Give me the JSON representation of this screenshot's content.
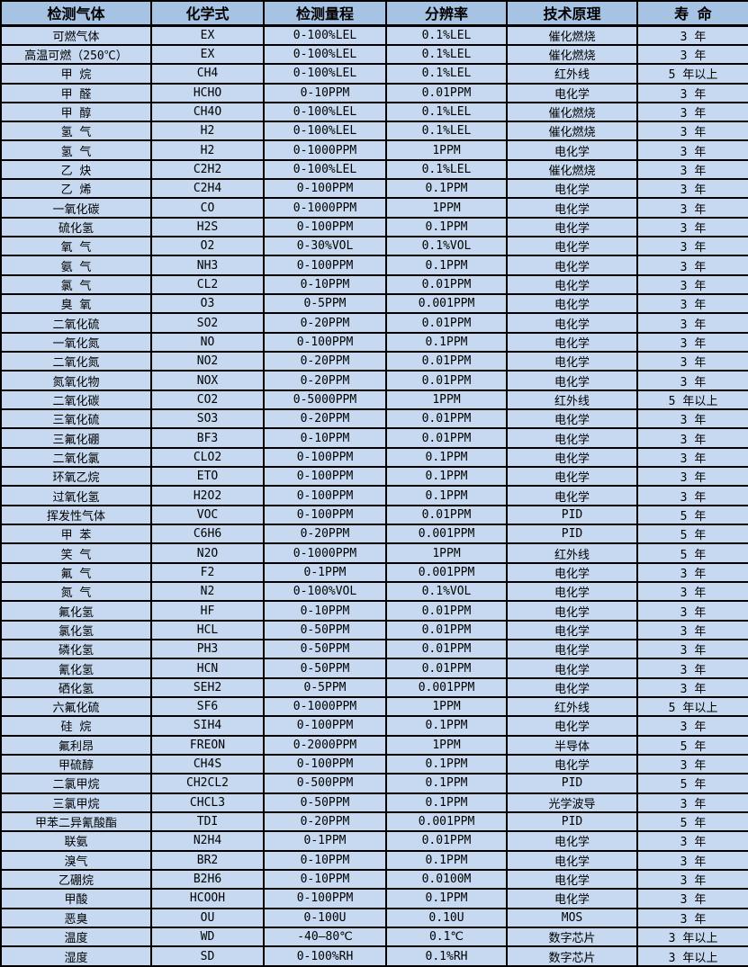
{
  "table": {
    "columns": [
      "检测气体",
      "化学式",
      "检测量程",
      "分辨率",
      "技术原理",
      "寿 命"
    ],
    "rows": [
      [
        "可燃气体",
        "EX",
        "0-100%LEL",
        "0.1%LEL",
        "催化燃烧",
        "3 年"
      ],
      [
        "高温可燃（250℃）",
        "EX",
        "0-100%LEL",
        "0.1%LEL",
        "催化燃烧",
        "3 年"
      ],
      [
        "甲 烷",
        "CH4",
        "0-100%LEL",
        "0.1%LEL",
        "红外线",
        "5 年以上"
      ],
      [
        "甲 醛",
        "HCHO",
        "0-10PPM",
        "0.01PPM",
        "电化学",
        "3 年"
      ],
      [
        "甲 醇",
        "CH4O",
        "0-100%LEL",
        "0.1%LEL",
        "催化燃烧",
        "3 年"
      ],
      [
        "氢 气",
        "H2",
        "0-100%LEL",
        "0.1%LEL",
        "催化燃烧",
        "3 年"
      ],
      [
        "氢 气",
        "H2",
        "0-1000PPM",
        "1PPM",
        "电化学",
        "3 年"
      ],
      [
        "乙 炔",
        "C2H2",
        "0-100%LEL",
        "0.1%LEL",
        "催化燃烧",
        "3 年"
      ],
      [
        "乙 烯",
        "C2H4",
        "0-100PPM",
        "0.1PPM",
        "电化学",
        "3 年"
      ],
      [
        "一氧化碳",
        "CO",
        "0-1000PPM",
        "1PPM",
        "电化学",
        "3 年"
      ],
      [
        "硫化氢",
        "H2S",
        "0-100PPM",
        "0.1PPM",
        "电化学",
        "3 年"
      ],
      [
        "氧 气",
        "O2",
        "0-30%VOL",
        "0.1%VOL",
        "电化学",
        "3 年"
      ],
      [
        "氨 气",
        "NH3",
        "0-100PPM",
        "0.1PPM",
        "电化学",
        "3 年"
      ],
      [
        "氯 气",
        "CL2",
        "0-10PPM",
        "0.01PPM",
        "电化学",
        "3 年"
      ],
      [
        "臭 氧",
        "O3",
        "0-5PPM",
        "0.001PPM",
        "电化学",
        "3 年"
      ],
      [
        "二氧化硫",
        "SO2",
        "0-20PPM",
        "0.01PPM",
        "电化学",
        "3 年"
      ],
      [
        "一氧化氮",
        "NO",
        "0-100PPM",
        "0.1PPM",
        "电化学",
        "3 年"
      ],
      [
        "二氧化氮",
        "NO2",
        "0-20PPM",
        "0.01PPM",
        "电化学",
        "3 年"
      ],
      [
        "氮氧化物",
        "NOX",
        "0-20PPM",
        "0.01PPM",
        "电化学",
        "3 年"
      ],
      [
        "二氧化碳",
        "CO2",
        "0-5000PPM",
        "1PPM",
        "红外线",
        "5 年以上"
      ],
      [
        "三氧化硫",
        "SO3",
        "0-20PPM",
        "0.01PPM",
        "电化学",
        "3 年"
      ],
      [
        "三氟化硼",
        "BF3",
        "0-10PPM",
        "0.01PPM",
        "电化学",
        "3 年"
      ],
      [
        "二氧化氯",
        "CLO2",
        "0-100PPM",
        "0.1PPM",
        "电化学",
        "3 年"
      ],
      [
        "环氧乙烷",
        "ETO",
        "0-100PPM",
        "0.1PPM",
        "电化学",
        "3 年"
      ],
      [
        "过氧化氢",
        "H2O2",
        "0-100PPM",
        "0.1PPM",
        "电化学",
        "3 年"
      ],
      [
        "挥发性气体",
        "VOC",
        "0-100PPM",
        "0.01PPM",
        "PID",
        "5 年"
      ],
      [
        "甲 苯",
        "C6H6",
        "0-20PPM",
        "0.001PPM",
        "PID",
        "5 年"
      ],
      [
        "笑 气",
        "N2O",
        "0-1000PPM",
        "1PPM",
        "红外线",
        "5 年"
      ],
      [
        "氟 气",
        "F2",
        "0-1PPM",
        "0.001PPM",
        "电化学",
        "3 年"
      ],
      [
        "氮 气",
        "N2",
        "0-100%VOL",
        "0.1%VOL",
        "电化学",
        "3 年"
      ],
      [
        "氟化氢",
        "HF",
        "0-10PPM",
        "0.01PPM",
        "电化学",
        "3 年"
      ],
      [
        "氯化氢",
        "HCL",
        "0-50PPM",
        "0.01PPM",
        "电化学",
        "3 年"
      ],
      [
        "磷化氢",
        "PH3",
        "0-50PPM",
        "0.01PPM",
        "电化学",
        "3 年"
      ],
      [
        "氰化氢",
        "HCN",
        "0-50PPM",
        "0.01PPM",
        "电化学",
        "3 年"
      ],
      [
        "硒化氢",
        "SEH2",
        "0-5PPM",
        "0.001PPM",
        "电化学",
        "3 年"
      ],
      [
        "六氟化硫",
        "SF6",
        "0-1000PPM",
        "1PPM",
        "红外线",
        "5 年以上"
      ],
      [
        "硅 烷",
        "SIH4",
        "0-100PPM",
        "0.1PPM",
        "电化学",
        "3 年"
      ],
      [
        "氟利昂",
        "FREON",
        "0-2000PPM",
        "1PPM",
        "半导体",
        "5 年"
      ],
      [
        "甲硫醇",
        "CH4S",
        "0-100PPM",
        "0.1PPM",
        "电化学",
        "3 年"
      ],
      [
        "二氯甲烷",
        "CH2CL2",
        "0-500PPM",
        "0.1PPM",
        "PID",
        "5 年"
      ],
      [
        "三氯甲烷",
        "CHCL3",
        "0-50PPM",
        "0.1PPM",
        "光学波导",
        "3 年"
      ],
      [
        "甲苯二异氰酸酯",
        "TDI",
        "0-20PPM",
        "0.001PPM",
        "PID",
        "5 年"
      ],
      [
        "联氨",
        "N2H4",
        "0-1PPM",
        "0.01PPM",
        "电化学",
        "3 年"
      ],
      [
        "溴气",
        "BR2",
        "0-10PPM",
        "0.1PPM",
        "电化学",
        "3 年"
      ],
      [
        "乙硼烷",
        "B2H6",
        "0-10PPM",
        "0.0100M",
        "电化学",
        "3 年"
      ],
      [
        "甲酸",
        "HCOOH",
        "0-100PPM",
        "0.1PPM",
        "电化学",
        "3 年"
      ],
      [
        "恶臭",
        "OU",
        "0-100U",
        "0.10U",
        "MOS",
        "3 年"
      ],
      [
        "温度",
        "WD",
        "-40—80℃",
        "0.1℃",
        "数字芯片",
        "3 年以上"
      ],
      [
        "湿度",
        "SD",
        "0-100%RH",
        "0.1%RH",
        "数字芯片",
        "3 年以上"
      ]
    ]
  },
  "colors": {
    "header_bg": "#a6c3e4",
    "row_bg": "#c6d9f1",
    "border": "#000000",
    "text": "#000000"
  }
}
